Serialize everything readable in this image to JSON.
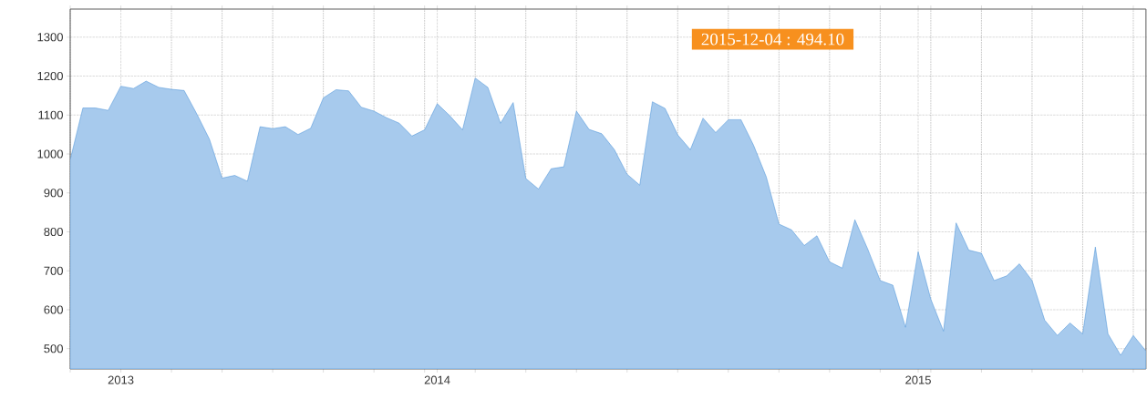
{
  "chart_data": {
    "type": "area",
    "categories": [
      null,
      null,
      null,
      null,
      "2013",
      null,
      null,
      null,
      null,
      null,
      null,
      null,
      null,
      null,
      null,
      null,
      null,
      null,
      null,
      null,
      null,
      null,
      null,
      null,
      null,
      null,
      null,
      null,
      null,
      "2014",
      null,
      null,
      null,
      null,
      null,
      null,
      null,
      null,
      null,
      null,
      null,
      null,
      null,
      null,
      null,
      null,
      null,
      null,
      null,
      null,
      null,
      null,
      null,
      null,
      null,
      null,
      null,
      null,
      null,
      null,
      null,
      null,
      null,
      null,
      null,
      null,
      null,
      "2015",
      null,
      null,
      null,
      null,
      null,
      null,
      null,
      null,
      null,
      null,
      null,
      null,
      null,
      null,
      null,
      null,
      null,
      null
    ],
    "series": [
      {
        "color": "#a7caed",
        "values": [
          985,
          1118,
          1118,
          1112,
          1174,
          1168,
          1187,
          1171,
          1166,
          1163,
          1103,
          1038,
          938,
          945,
          930,
          1070,
          1065,
          1070,
          1050,
          1066,
          1144,
          1165,
          1162,
          1120,
          1110,
          1093,
          1079,
          1046,
          1062,
          1129,
          1098,
          1062,
          1195,
          1171,
          1079,
          1132,
          937,
          910,
          962,
          967,
          1110,
          1063,
          1052,
          1011,
          948,
          920,
          1134,
          1117,
          1049,
          1011,
          1092,
          1055,
          1088,
          1088,
          1022,
          941,
          820,
          805,
          765,
          790,
          723,
          707,
          831,
          757,
          675,
          663,
          555,
          749,
          627,
          545,
          823,
          753,
          745,
          675,
          687,
          718,
          675,
          573,
          534,
          566,
          538,
          761,
          538,
          483,
          534,
          494
        ]
      }
    ],
    "ylim": [
      448,
      1372
    ],
    "yticks": [
      500,
      600,
      700,
      800,
      900,
      1000,
      1100,
      1200,
      1300
    ],
    "grid": true,
    "annotations": [
      "2015-12-04 : 494.10"
    ]
  }
}
